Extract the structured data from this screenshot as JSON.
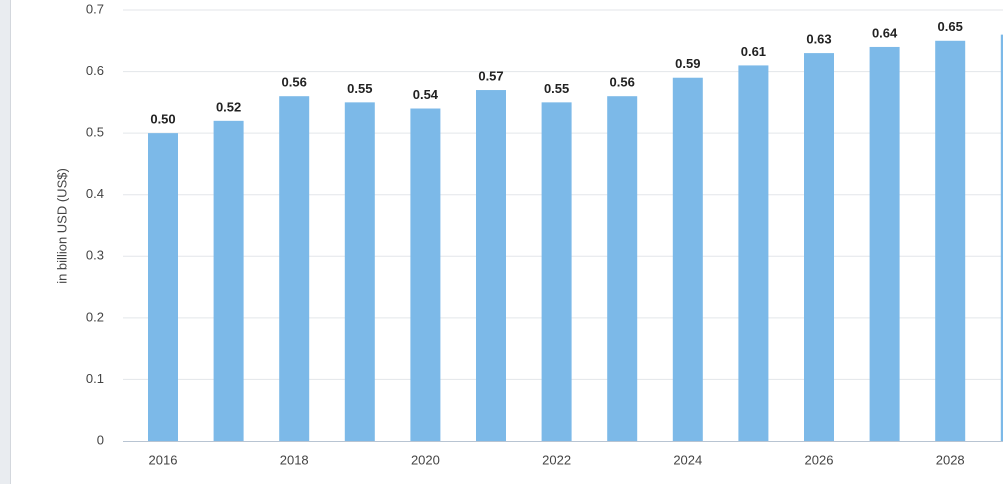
{
  "chart_data": {
    "type": "bar",
    "y_axis_label": "in billion USD (US$)",
    "categories": [
      "2016",
      null,
      "2018",
      null,
      "2020",
      null,
      "2022",
      null,
      "2024",
      null,
      "2026",
      null,
      "2028",
      null
    ],
    "values": [
      0.5,
      0.52,
      0.56,
      0.55,
      0.54,
      0.57,
      0.55,
      0.56,
      0.59,
      0.61,
      0.63,
      0.64,
      0.65,
      0.66
    ],
    "value_labels": [
      "0.50",
      "0.52",
      "0.56",
      "0.55",
      "0.54",
      "0.57",
      "0.55",
      "0.56",
      "0.59",
      "0.61",
      "0.63",
      "0.64",
      "0.65",
      null
    ],
    "color": "#7cb9e8",
    "ylim": [
      0,
      0.7
    ],
    "yticks": [
      0,
      0.1,
      0.2,
      0.3,
      0.4,
      0.5,
      0.6,
      0.7
    ],
    "grid": true
  }
}
